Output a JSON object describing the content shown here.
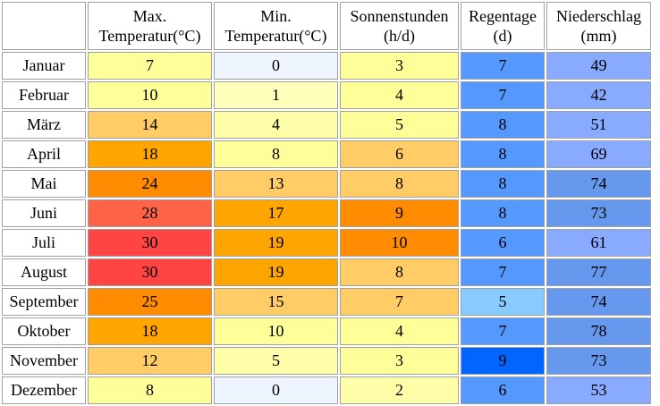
{
  "table": {
    "columns": [
      {
        "line1": "Max.",
        "line2": "Temperatur(°C)"
      },
      {
        "line1": "Min.",
        "line2": "Temperatur(°C)"
      },
      {
        "line1": "Sonnenstunden",
        "line2": "(h/d)"
      },
      {
        "line1": "Regentage",
        "line2": "(d)"
      },
      {
        "line1": "Niederschlag",
        "line2": "(mm)"
      }
    ],
    "rows": [
      {
        "month": "Januar",
        "values": [
          "7",
          "0",
          "3",
          "7",
          "49"
        ],
        "colors": [
          "#ffff99",
          "#eef5ff",
          "#ffff99",
          "#5599ff",
          "#88aaff"
        ]
      },
      {
        "month": "Februar",
        "values": [
          "10",
          "1",
          "4",
          "7",
          "42"
        ],
        "colors": [
          "#ffff99",
          "#ffffbb",
          "#ffff99",
          "#5599ff",
          "#88aaff"
        ]
      },
      {
        "month": "März",
        "values": [
          "14",
          "4",
          "5",
          "8",
          "51"
        ],
        "colors": [
          "#ffcc66",
          "#ffffaa",
          "#ffff99",
          "#5599ff",
          "#88aaff"
        ]
      },
      {
        "month": "April",
        "values": [
          "18",
          "8",
          "6",
          "8",
          "69"
        ],
        "colors": [
          "#ffa500",
          "#ffff99",
          "#ffcc66",
          "#5599ff",
          "#88aaff"
        ]
      },
      {
        "month": "Mai",
        "values": [
          "24",
          "13",
          "8",
          "8",
          "74"
        ],
        "colors": [
          "#ff8c00",
          "#ffcc66",
          "#ffcc66",
          "#5599ff",
          "#6699ee"
        ]
      },
      {
        "month": "Juni",
        "values": [
          "28",
          "17",
          "9",
          "8",
          "73"
        ],
        "colors": [
          "#ff6347",
          "#ffa500",
          "#ff8c00",
          "#5599ff",
          "#6699ee"
        ]
      },
      {
        "month": "Juli",
        "values": [
          "30",
          "19",
          "10",
          "6",
          "61"
        ],
        "colors": [
          "#ff4444",
          "#ffa500",
          "#ff8c00",
          "#5599ff",
          "#88aaff"
        ]
      },
      {
        "month": "August",
        "values": [
          "30",
          "19",
          "8",
          "7",
          "77"
        ],
        "colors": [
          "#ff4444",
          "#ffa500",
          "#ffcc66",
          "#5599ff",
          "#6699ee"
        ]
      },
      {
        "month": "September",
        "values": [
          "25",
          "15",
          "7",
          "5",
          "74"
        ],
        "colors": [
          "#ff8c00",
          "#ffcc66",
          "#ffcc66",
          "#88ccff",
          "#6699ee"
        ]
      },
      {
        "month": "Oktober",
        "values": [
          "18",
          "10",
          "4",
          "7",
          "78"
        ],
        "colors": [
          "#ffa500",
          "#ffff99",
          "#ffff99",
          "#5599ff",
          "#6699ee"
        ]
      },
      {
        "month": "November",
        "values": [
          "12",
          "5",
          "3",
          "9",
          "73"
        ],
        "colors": [
          "#ffcc66",
          "#ffffaa",
          "#ffff99",
          "#0066ff",
          "#6699ee"
        ]
      },
      {
        "month": "Dezember",
        "values": [
          "8",
          "0",
          "2",
          "6",
          "53"
        ],
        "colors": [
          "#ffff99",
          "#eef5ff",
          "#ffffaa",
          "#5599ff",
          "#88aaff"
        ]
      }
    ]
  }
}
